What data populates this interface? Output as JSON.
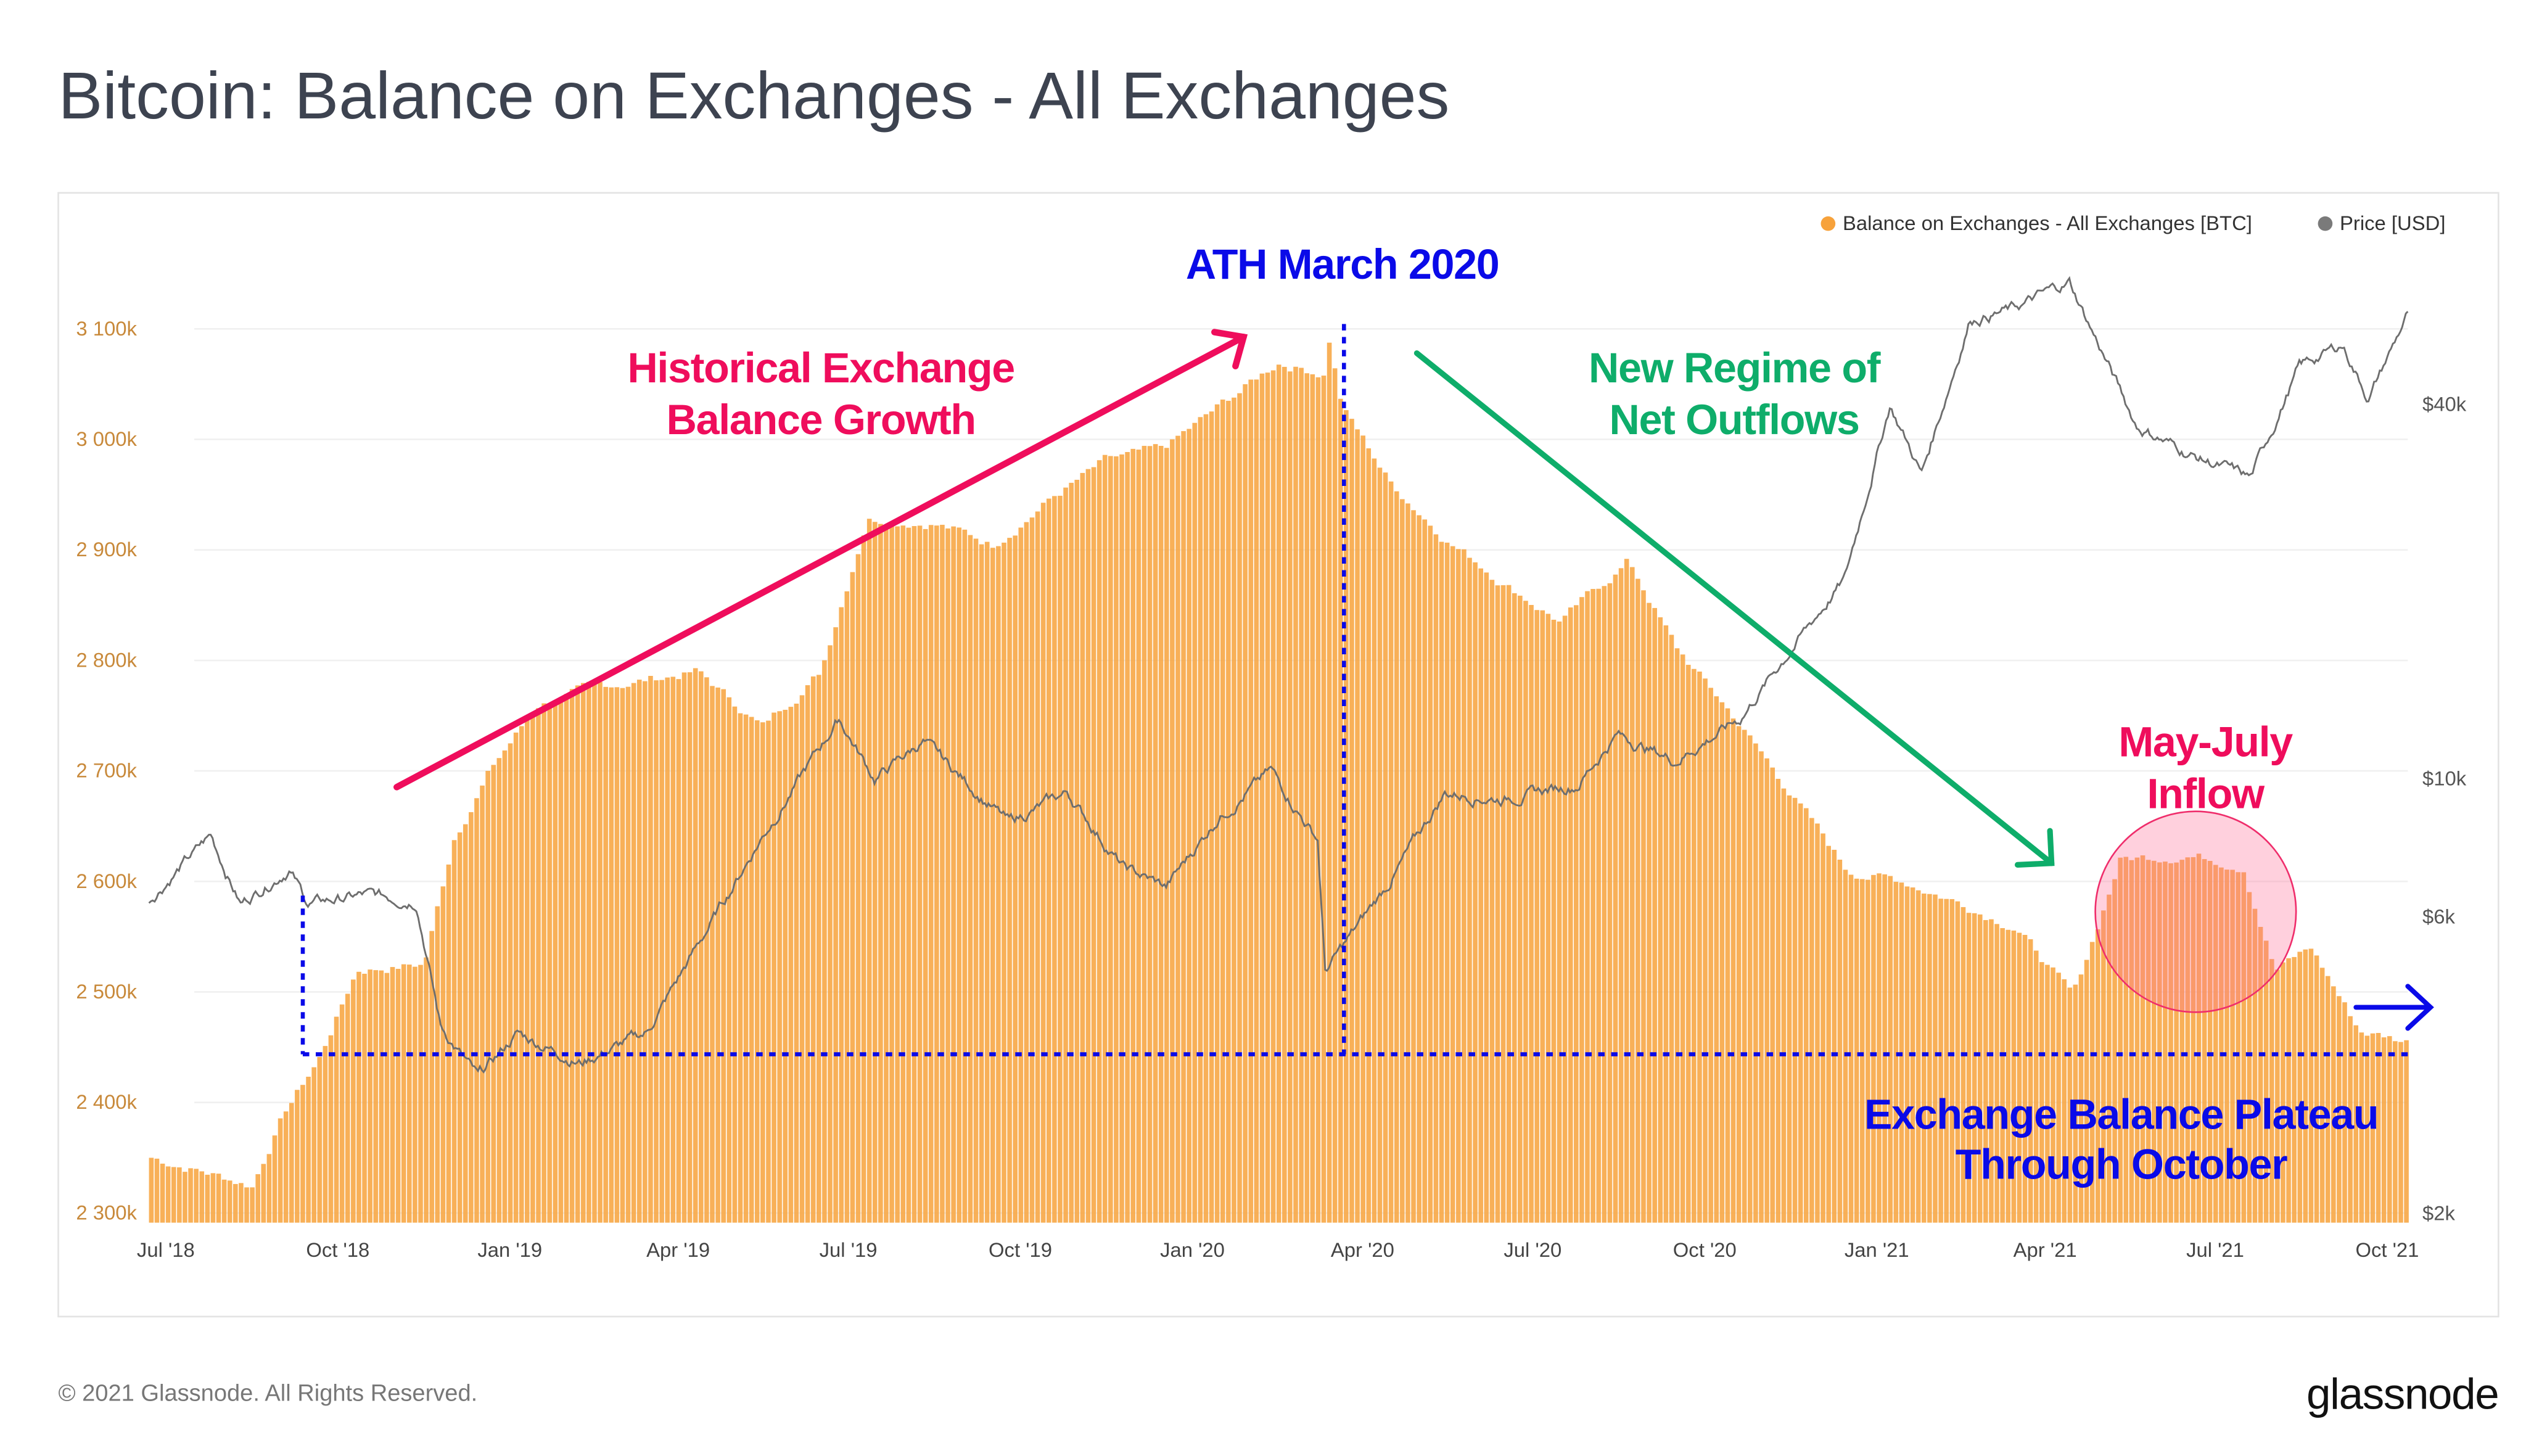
{
  "title": "Bitcoin: Balance on Exchanges - All Exchanges",
  "footer": {
    "copyright": "© 2021 Glassnode. All Rights Reserved.",
    "logo": "glassnode"
  },
  "colors": {
    "balance": "#f7a23b",
    "price": "#7a7a7a",
    "pink": "#ef0d5c",
    "blue": "#0a0ae8",
    "green": "#0ead6a",
    "axis_left": "#c8893a"
  },
  "annotations": {
    "ath": "ATH March 2020",
    "growth_1": "Historical Exchange",
    "growth_2": "Balance Growth",
    "outflows_1": "New Regime of",
    "outflows_2": "Net Outflows",
    "inflow_1": "May-July",
    "inflow_2": "Inflow",
    "plateau_1": "Exchange Balance Plateau",
    "plateau_2": "Through October"
  },
  "chart_data": {
    "type": "bar",
    "title": "Bitcoin: Balance on Exchanges - All Exchanges",
    "legend": [
      {
        "label": "Balance on Exchanges - All Exchanges [BTC]",
        "color": "#f7a23b"
      },
      {
        "label": "Price [USD]",
        "color": "#7a7a7a"
      }
    ],
    "legend_position": "top-right",
    "x_range": [
      "2018-06-22",
      "2021-10-12"
    ],
    "x_ticks": [
      {
        "date": "2018-07-01",
        "label": "Jul '18"
      },
      {
        "date": "2018-10-01",
        "label": "Oct '18"
      },
      {
        "date": "2019-01-01",
        "label": "Jan '19"
      },
      {
        "date": "2019-04-01",
        "label": "Apr '19"
      },
      {
        "date": "2019-07-01",
        "label": "Jul '19"
      },
      {
        "date": "2019-10-01",
        "label": "Oct '19"
      },
      {
        "date": "2020-01-01",
        "label": "Jan '20"
      },
      {
        "date": "2020-04-01",
        "label": "Apr '20"
      },
      {
        "date": "2020-07-01",
        "label": "Jul '20"
      },
      {
        "date": "2020-10-01",
        "label": "Oct '20"
      },
      {
        "date": "2021-01-01",
        "label": "Jan '21"
      },
      {
        "date": "2021-04-01",
        "label": "Apr '21"
      },
      {
        "date": "2021-07-01",
        "label": "Jul '21"
      },
      {
        "date": "2021-10-01",
        "label": "Oct '21"
      }
    ],
    "y_left": {
      "unit": "BTC (thousands)",
      "range": [
        2300,
        3100
      ],
      "ticks": [
        {
          "v": 3100,
          "label": "3 100k"
        },
        {
          "v": 3000,
          "label": "3 000k"
        },
        {
          "v": 2900,
          "label": "2 900k"
        },
        {
          "v": 2800,
          "label": "2 800k"
        },
        {
          "v": 2700,
          "label": "2 700k"
        },
        {
          "v": 2600,
          "label": "2 600k"
        },
        {
          "v": 2500,
          "label": "2 500k"
        },
        {
          "v": 2400,
          "label": "2 400k"
        },
        {
          "v": 2300,
          "label": "2 300k"
        }
      ]
    },
    "y_right": {
      "scale": "log",
      "unit": "USD",
      "ticks": [
        {
          "v": 40000,
          "label": "$40k"
        },
        {
          "v": 10000,
          "label": "$10k"
        },
        {
          "v": 6000,
          "label": "$6k"
        },
        {
          "v": 2000,
          "label": "$2k"
        }
      ]
    },
    "grid": true,
    "balance_series": [
      [
        "2018-06-22",
        2350
      ],
      [
        "2018-07-15",
        2340
      ],
      [
        "2018-08-15",
        2325
      ],
      [
        "2018-09-01",
        2390
      ],
      [
        "2018-09-20",
        2440
      ],
      [
        "2018-10-10",
        2520
      ],
      [
        "2018-11-15",
        2525
      ],
      [
        "2018-12-01",
        2640
      ],
      [
        "2018-12-20",
        2700
      ],
      [
        "2019-01-15",
        2760
      ],
      [
        "2019-02-15",
        2775
      ],
      [
        "2019-04-10",
        2790
      ],
      [
        "2019-05-15",
        2740
      ],
      [
        "2019-06-15",
        2790
      ],
      [
        "2019-07-10",
        2930
      ],
      [
        "2019-08-15",
        2925
      ],
      [
        "2019-09-15",
        2905
      ],
      [
        "2019-10-15",
        2945
      ],
      [
        "2019-11-15",
        2980
      ],
      [
        "2019-12-15",
        2990
      ],
      [
        "2020-01-15",
        3030
      ],
      [
        "2020-02-15",
        3070
      ],
      [
        "2020-03-10",
        3060
      ],
      [
        "2020-03-12",
        3100
      ],
      [
        "2020-03-20",
        3030
      ],
      [
        "2020-04-15",
        2960
      ],
      [
        "2020-05-15",
        2910
      ],
      [
        "2020-06-15",
        2870
      ],
      [
        "2020-07-15",
        2835
      ],
      [
        "2020-08-20",
        2890
      ],
      [
        "2020-09-15",
        2810
      ],
      [
        "2020-10-15",
        2750
      ],
      [
        "2020-11-15",
        2680
      ],
      [
        "2020-12-15",
        2610
      ],
      [
        "2021-01-15",
        2600
      ],
      [
        "2021-02-15",
        2580
      ],
      [
        "2021-03-15",
        2560
      ],
      [
        "2021-04-15",
        2495
      ],
      [
        "2021-05-10",
        2620
      ],
      [
        "2021-06-15",
        2625
      ],
      [
        "2021-07-15",
        2615
      ],
      [
        "2021-08-01",
        2520
      ],
      [
        "2021-08-20",
        2540
      ],
      [
        "2021-09-15",
        2465
      ],
      [
        "2021-10-12",
        2455
      ]
    ],
    "price_series": [
      [
        "2018-06-22",
        6400
      ],
      [
        "2018-07-25",
        8100
      ],
      [
        "2018-08-10",
        6300
      ],
      [
        "2018-09-05",
        7200
      ],
      [
        "2018-09-15",
        6300
      ],
      [
        "2018-10-15",
        6500
      ],
      [
        "2018-11-12",
        6400
      ],
      [
        "2018-11-25",
        4000
      ],
      [
        "2018-12-15",
        3300
      ],
      [
        "2019-01-05",
        3900
      ],
      [
        "2019-02-08",
        3500
      ],
      [
        "2019-03-15",
        3900
      ],
      [
        "2019-04-05",
        5000
      ],
      [
        "2019-05-15",
        8000
      ],
      [
        "2019-06-26",
        12500
      ],
      [
        "2019-07-15",
        10000
      ],
      [
        "2019-08-10",
        11500
      ],
      [
        "2019-09-25",
        8500
      ],
      [
        "2019-10-26",
        9500
      ],
      [
        "2019-11-25",
        7200
      ],
      [
        "2019-12-18",
        6700
      ],
      [
        "2020-01-15",
        8700
      ],
      [
        "2020-02-12",
        10300
      ],
      [
        "2020-03-08",
        8000
      ],
      [
        "2020-03-12",
        4900
      ],
      [
        "2020-04-15",
        6800
      ],
      [
        "2020-05-15",
        9500
      ],
      [
        "2020-06-15",
        9300
      ],
      [
        "2020-07-25",
        9800
      ],
      [
        "2020-08-15",
        11800
      ],
      [
        "2020-09-15",
        10700
      ],
      [
        "2020-10-20",
        12500
      ],
      [
        "2020-11-15",
        16000
      ],
      [
        "2020-12-15",
        21000
      ],
      [
        "2021-01-08",
        40000
      ],
      [
        "2021-01-25",
        31000
      ],
      [
        "2021-02-20",
        55000
      ],
      [
        "2021-03-15",
        57000
      ],
      [
        "2021-04-14",
        63000
      ],
      [
        "2021-05-20",
        37000
      ],
      [
        "2021-06-20",
        33000
      ],
      [
        "2021-07-20",
        30500
      ],
      [
        "2021-08-15",
        46000
      ],
      [
        "2021-09-07",
        50000
      ],
      [
        "2021-09-21",
        41000
      ],
      [
        "2021-10-12",
        56000
      ]
    ]
  }
}
